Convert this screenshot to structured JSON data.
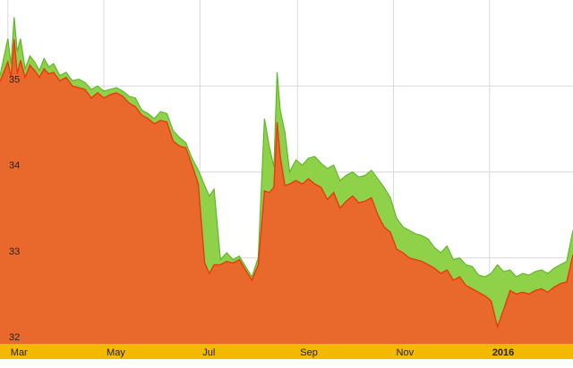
{
  "chart_data": {
    "type": "area",
    "title": "",
    "xlabel": "",
    "ylabel": "",
    "ylim": [
      32,
      36
    ],
    "y_ticks": [
      32,
      33,
      34,
      35
    ],
    "x_range": [
      "2015-02-24",
      "2016-02-23"
    ],
    "x_ticks": [
      {
        "label": "Mar",
        "date": "2015-03-01",
        "bold": false
      },
      {
        "label": "May",
        "date": "2015-05-01",
        "bold": false
      },
      {
        "label": "Jul",
        "date": "2015-07-01",
        "bold": false
      },
      {
        "label": "Sep",
        "date": "2015-09-01",
        "bold": false
      },
      {
        "label": "Nov",
        "date": "2015-11-01",
        "bold": false
      },
      {
        "label": "2016",
        "date": "2016-01-01",
        "bold": true
      }
    ],
    "grid": true,
    "legend": "none",
    "colors": {
      "upper_fill": "#8fd24a",
      "upper_line": "#5fb82a",
      "lower_fill": "#e8692b",
      "lower_line": "#e83a10",
      "axis_band": "#f5b800",
      "grid": "#d9d9d9"
    },
    "series": [
      {
        "x": [
          "2015-02-24",
          "2015-03-01",
          "2015-03-03",
          "2015-03-05",
          "2015-03-07",
          "2015-03-09",
          "2015-03-12",
          "2015-03-15",
          "2015-03-18",
          "2015-03-21",
          "2015-03-24",
          "2015-03-27",
          "2015-03-30",
          "2015-04-03",
          "2015-04-07",
          "2015-04-11",
          "2015-04-15",
          "2015-04-19",
          "2015-04-23",
          "2015-04-27",
          "2015-05-01",
          "2015-05-05",
          "2015-05-09",
          "2015-05-13",
          "2015-05-17",
          "2015-05-21",
          "2015-05-25",
          "2015-05-29",
          "2015-06-02",
          "2015-06-06",
          "2015-06-10",
          "2015-06-14",
          "2015-06-18",
          "2015-06-22",
          "2015-06-26",
          "2015-06-30",
          "2015-07-04",
          "2015-07-07",
          "2015-07-10",
          "2015-07-14",
          "2015-07-18",
          "2015-07-22",
          "2015-07-26",
          "2015-07-30",
          "2015-08-03",
          "2015-08-07",
          "2015-08-11",
          "2015-08-14",
          "2015-08-17",
          "2015-08-19",
          "2015-08-21",
          "2015-08-24",
          "2015-08-27",
          "2015-08-31",
          "2015-09-04",
          "2015-09-08",
          "2015-09-12",
          "2015-09-16",
          "2015-09-20",
          "2015-09-24",
          "2015-09-28",
          "2015-10-02",
          "2015-10-06",
          "2015-10-10",
          "2015-10-14",
          "2015-10-18",
          "2015-10-22",
          "2015-10-26",
          "2015-10-30",
          "2015-11-03",
          "2015-11-07",
          "2015-11-11",
          "2015-11-15",
          "2015-11-19",
          "2015-11-23",
          "2015-11-27",
          "2015-12-01",
          "2015-12-05",
          "2015-12-09",
          "2015-12-13",
          "2015-12-17",
          "2015-12-21",
          "2015-12-25",
          "2015-12-29",
          "2016-01-02",
          "2016-01-06",
          "2016-01-10",
          "2016-01-14",
          "2016-01-18",
          "2016-01-22",
          "2016-01-26",
          "2016-01-30",
          "2016-02-03",
          "2016-02-07",
          "2016-02-11",
          "2016-02-15",
          "2016-02-19",
          "2016-02-23"
        ],
        "upper": [
          35.12,
          35.55,
          35.25,
          35.8,
          35.4,
          35.55,
          35.2,
          35.35,
          35.28,
          35.18,
          35.32,
          35.22,
          35.26,
          35.12,
          35.16,
          35.06,
          35.08,
          35.04,
          34.96,
          35.0,
          34.94,
          34.96,
          34.98,
          34.94,
          34.88,
          34.86,
          34.72,
          34.68,
          34.62,
          34.7,
          34.68,
          34.48,
          34.4,
          34.34,
          34.16,
          34.02,
          33.84,
          33.72,
          33.8,
          32.98,
          33.06,
          32.98,
          33.02,
          32.9,
          32.78,
          33.0,
          34.62,
          34.3,
          34.06,
          35.16,
          34.72,
          34.46,
          34.0,
          34.14,
          34.08,
          34.16,
          34.18,
          34.1,
          34.04,
          34.08,
          33.9,
          33.96,
          34.0,
          33.94,
          33.96,
          34.02,
          33.92,
          33.82,
          33.7,
          33.46,
          33.36,
          33.32,
          33.28,
          33.26,
          33.22,
          33.12,
          33.06,
          33.14,
          32.98,
          33.0,
          32.92,
          32.9,
          32.8,
          32.78,
          32.82,
          32.92,
          32.84,
          32.86,
          32.78,
          32.82,
          32.8,
          32.84,
          32.86,
          32.82,
          32.88,
          32.92,
          32.96,
          33.32
        ],
        "lower": [
          35.05,
          35.28,
          35.1,
          35.54,
          35.14,
          35.3,
          35.1,
          35.24,
          35.18,
          35.1,
          35.2,
          35.14,
          35.16,
          35.06,
          35.1,
          35.0,
          34.98,
          34.96,
          34.86,
          34.92,
          34.86,
          34.9,
          34.92,
          34.88,
          34.8,
          34.76,
          34.66,
          34.62,
          34.56,
          34.6,
          34.58,
          34.36,
          34.3,
          34.28,
          34.08,
          33.86,
          32.94,
          32.82,
          32.92,
          32.92,
          32.96,
          32.94,
          32.98,
          32.86,
          32.74,
          32.92,
          33.78,
          33.76,
          33.82,
          34.58,
          34.18,
          33.84,
          33.86,
          33.9,
          33.86,
          33.92,
          33.86,
          33.82,
          33.68,
          33.76,
          33.58,
          33.66,
          33.72,
          33.64,
          33.66,
          33.7,
          33.5,
          33.36,
          33.3,
          33.1,
          33.06,
          33.0,
          32.98,
          32.96,
          32.92,
          32.88,
          32.82,
          32.86,
          32.74,
          32.78,
          32.68,
          32.64,
          32.6,
          32.56,
          32.5,
          32.2,
          32.4,
          32.62,
          32.58,
          32.6,
          32.58,
          32.62,
          32.64,
          32.6,
          32.66,
          32.7,
          32.72,
          33.04
        ]
      }
    ]
  }
}
